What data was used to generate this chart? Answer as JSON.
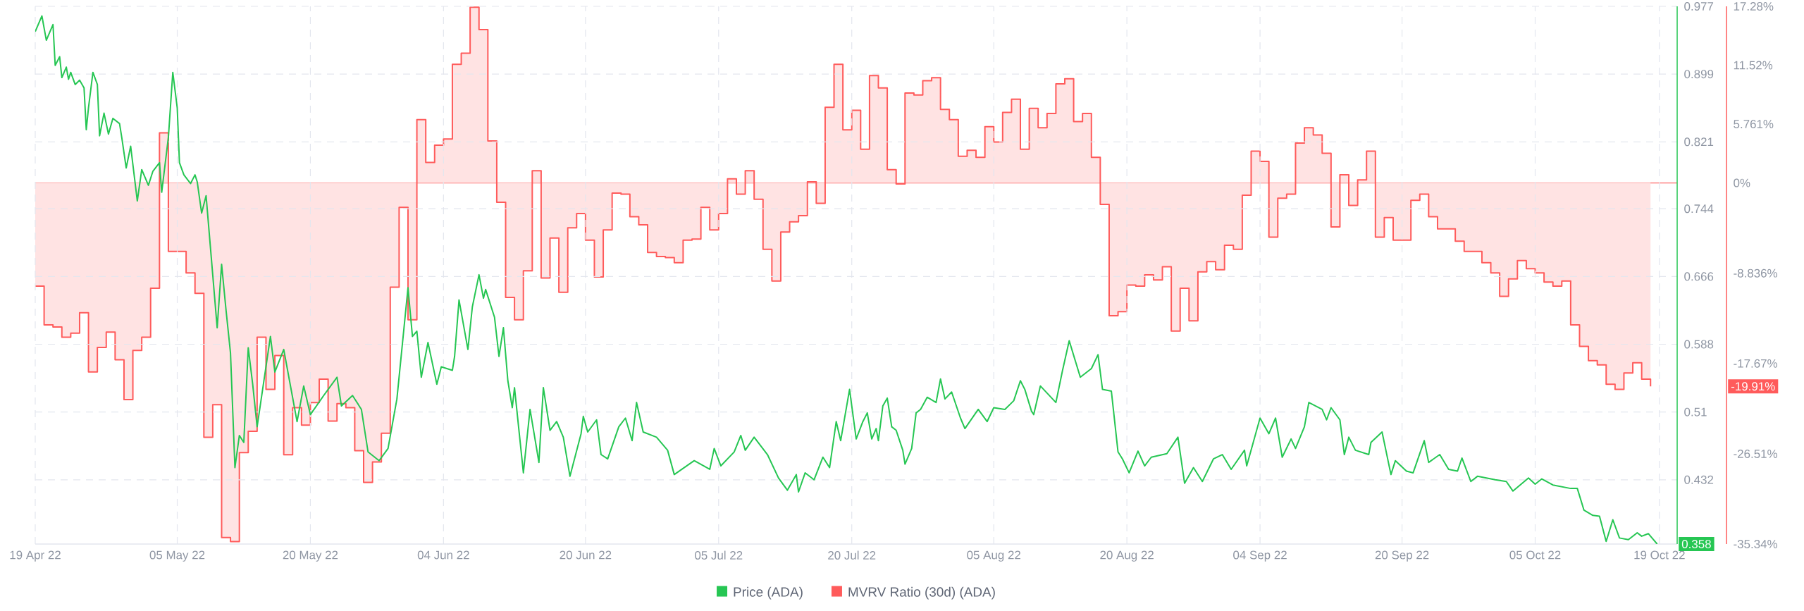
{
  "chart_data": {
    "type": "line",
    "xlim": [
      "2022-04-19",
      "2022-10-21"
    ],
    "xticks": [
      {
        "value": "2022-04-19",
        "label": "19 Apr 22"
      },
      {
        "value": "2022-05-05",
        "label": "05 May 22"
      },
      {
        "value": "2022-05-20",
        "label": "20 May 22"
      },
      {
        "value": "2022-06-04",
        "label": "04 Jun 22"
      },
      {
        "value": "2022-06-20",
        "label": "20 Jun 22"
      },
      {
        "value": "2022-07-05",
        "label": "05 Jul 22"
      },
      {
        "value": "2022-07-20",
        "label": "20 Jul 22"
      },
      {
        "value": "2022-08-05",
        "label": "05 Aug 22"
      },
      {
        "value": "2022-08-20",
        "label": "20 Aug 22"
      },
      {
        "value": "2022-09-04",
        "label": "04 Sep 22"
      },
      {
        "value": "2022-09-20",
        "label": "20 Sep 22"
      },
      {
        "value": "2022-10-05",
        "label": "05 Oct 22"
      },
      {
        "value": "2022-10-19",
        "label": "19 Oct 22"
      }
    ],
    "ylim": [
      0.358,
      0.977
    ],
    "yticks": [
      0.977,
      0.899,
      0.821,
      0.744,
      0.666,
      0.588,
      0.51,
      0.432
    ],
    "y2lim": [
      -35.34,
      17.28
    ],
    "y2ticks": [
      {
        "value": 17.28,
        "label": "17.28%"
      },
      {
        "value": 11.52,
        "label": "11.52%"
      },
      {
        "value": 5.761,
        "label": "5.761%"
      },
      {
        "value": 0,
        "label": "0%"
      },
      {
        "value": -8.836,
        "label": "-8.836%"
      },
      {
        "value": -17.67,
        "label": "-17.67%"
      },
      {
        "value": -26.51,
        "label": "-26.51%"
      },
      {
        "value": -35.34,
        "label": "-35.34%"
      }
    ],
    "grid": true,
    "legend": "bottom",
    "ref_lines": [
      {
        "axis": "y2",
        "value": 0,
        "color": "#ff6b6b"
      }
    ],
    "annotations": [
      "0.358",
      "-19.91%"
    ],
    "series": [
      {
        "name": "Price (ADA)",
        "color": "#26c653",
        "axis": "y",
        "x": [
          "2022-04-19T00:00",
          "2022-04-19T18:00",
          "2022-04-20T06:00",
          "2022-04-21T00:00",
          "2022-04-21T06:00",
          "2022-04-21T18:00",
          "2022-04-22T00:00",
          "2022-04-22T12:00",
          "2022-04-22T18:00",
          "2022-04-23T00:00",
          "2022-04-23T12:00",
          "2022-04-24T00:00",
          "2022-04-24T12:00",
          "2022-04-24T18:00",
          "2022-04-25T00:00",
          "2022-04-25T12:00",
          "2022-04-26T00:00",
          "2022-04-26T06:00",
          "2022-04-26T18:00",
          "2022-04-27T06:00",
          "2022-04-27T18:00",
          "2022-04-28T12:00",
          "2022-04-28T18:00",
          "2022-04-29T06:00",
          "2022-04-29T18:00",
          "2022-04-30T12:00",
          "2022-05-01T00:00",
          "2022-05-01T18:00",
          "2022-05-02T06:00",
          "2022-05-03T00:00",
          "2022-05-03T06:00",
          "2022-05-04T00:00",
          "2022-05-04T12:00",
          "2022-05-05T00:00",
          "2022-05-05T06:00",
          "2022-05-05T18:00",
          "2022-05-06T12:00",
          "2022-05-07T00:00",
          "2022-05-07T06:00",
          "2022-05-07T18:00",
          "2022-05-08T06:00",
          "2022-05-09T12:00",
          "2022-05-10T00:00",
          "2022-05-10T12:00",
          "2022-05-11T00:00",
          "2022-05-11T12:00",
          "2022-05-12T00:00",
          "2022-05-12T12:00",
          "2022-05-13T00:00",
          "2022-05-13T12:00",
          "2022-05-14T00:00",
          "2022-05-15T12:00",
          "2022-05-16T00:00",
          "2022-05-17T00:00",
          "2022-05-18T12:00",
          "2022-05-19T06:00",
          "2022-05-20T00:00",
          "2022-05-21T12:00",
          "2022-05-23T00:00",
          "2022-05-23T12:00",
          "2022-05-24T18:00",
          "2022-05-25T18:00",
          "2022-05-26T12:00",
          "2022-05-27T18:00",
          "2022-05-28T18:00",
          "2022-05-29T18:00",
          "2022-05-31T00:00",
          "2022-05-31T12:00",
          "2022-06-01T00:00",
          "2022-06-01T12:00",
          "2022-06-02T06:00",
          "2022-06-03T06:00",
          "2022-06-03T18:00",
          "2022-06-05T00:00",
          "2022-06-05T06:00",
          "2022-06-05T18:00",
          "2022-06-06T18:00",
          "2022-06-07T06:00",
          "2022-06-08T00:00",
          "2022-06-08T12:00",
          "2022-06-08T18:00",
          "2022-06-09T18:00",
          "2022-06-10T06:00",
          "2022-06-10T18:00",
          "2022-06-11T06:00",
          "2022-06-11T18:00",
          "2022-06-12T00:00",
          "2022-06-13T00:00",
          "2022-06-13T18:00",
          "2022-06-14T18:00",
          "2022-06-15T06:00",
          "2022-06-16T00:00",
          "2022-06-16T18:00",
          "2022-06-17T12:00",
          "2022-06-18T06:00",
          "2022-06-19T12:00",
          "2022-06-19T18:00",
          "2022-06-20T06:00",
          "2022-06-21T06:00",
          "2022-06-21T18:00",
          "2022-06-22T12:00",
          "2022-06-23T18:00",
          "2022-06-24T12:00",
          "2022-06-25T06:00",
          "2022-06-25T18:00",
          "2022-06-26T12:00",
          "2022-06-28T00:00",
          "2022-06-29T06:00",
          "2022-06-30T00:00",
          "2022-07-02T06:00",
          "2022-07-04T00:00",
          "2022-07-04T12:00",
          "2022-07-05T06:00",
          "2022-07-06T18:00",
          "2022-07-07T12:00",
          "2022-07-08T00:00",
          "2022-07-09T00:00",
          "2022-07-10T12:00",
          "2022-07-11T18:00",
          "2022-07-12T18:00",
          "2022-07-13T18:00",
          "2022-07-14T00:00",
          "2022-07-14T18:00",
          "2022-07-15T18:00",
          "2022-07-16T18:00",
          "2022-07-17T12:00",
          "2022-07-18T06:00",
          "2022-07-18T18:00",
          "2022-07-19T18:00",
          "2022-07-20T12:00",
          "2022-07-21T06:00",
          "2022-07-21T18:00",
          "2022-07-22T06:00",
          "2022-07-22T18:00",
          "2022-07-23T00:00",
          "2022-07-23T12:00",
          "2022-07-24T00:00",
          "2022-07-24T12:00",
          "2022-07-25T00:00",
          "2022-07-25T18:00",
          "2022-07-26T00:00",
          "2022-07-26T18:00",
          "2022-07-27T06:00",
          "2022-07-27T18:00",
          "2022-07-28T12:00",
          "2022-07-29T12:00",
          "2022-07-30T00:00",
          "2022-07-30T12:00",
          "2022-07-31T06:00",
          "2022-08-01T06:00",
          "2022-08-01T18:00",
          "2022-08-03T06:00",
          "2022-08-04T06:00",
          "2022-08-05T00:00",
          "2022-08-06T06:00",
          "2022-08-07T06:00",
          "2022-08-08T00:00",
          "2022-08-08T12:00",
          "2022-08-09T06:00",
          "2022-08-09T12:00",
          "2022-08-10T06:00",
          "2022-08-12T00:00",
          "2022-08-12T18:00",
          "2022-08-13T12:00",
          "2022-08-14T18:00",
          "2022-08-16T00:00",
          "2022-08-16T18:00",
          "2022-08-17T06:00",
          "2022-08-18T06:00",
          "2022-08-19T00:00",
          "2022-08-19T12:00",
          "2022-08-20T06:00",
          "2022-08-21T06:00",
          "2022-08-22T00:00",
          "2022-08-22T18:00",
          "2022-08-24T12:00",
          "2022-08-25T18:00",
          "2022-08-26T12:00",
          "2022-08-27T12:00",
          "2022-08-28T12:00",
          "2022-08-29T18:00",
          "2022-08-30T18:00",
          "2022-08-31T18:00",
          "2022-09-02T06:00",
          "2022-09-02T12:00",
          "2022-09-04T00:00",
          "2022-09-05T00:00",
          "2022-09-05T18:00",
          "2022-09-06T12:00",
          "2022-09-07T12:00",
          "2022-09-08T00:00",
          "2022-09-09T00:00",
          "2022-09-09T12:00",
          "2022-09-11T00:00",
          "2022-09-11T12:00",
          "2022-09-12T00:00",
          "2022-09-13T00:00",
          "2022-09-13T12:00",
          "2022-09-14T00:00",
          "2022-09-14T18:00",
          "2022-09-16T06:00",
          "2022-09-16T12:00",
          "2022-09-17T18:00",
          "2022-09-18T18:00",
          "2022-09-19T06:00",
          "2022-09-20T12:00",
          "2022-09-21T06:00",
          "2022-09-22T12:00",
          "2022-09-23T00:00",
          "2022-09-24T06:00",
          "2022-09-25T06:00",
          "2022-09-26T06:00",
          "2022-09-26T18:00",
          "2022-09-27T18:00",
          "2022-09-28T12:00",
          "2022-09-30T12:00",
          "2022-10-01T18:00",
          "2022-10-02T12:00",
          "2022-10-04T06:00",
          "2022-10-05T00:00",
          "2022-10-05T18:00",
          "2022-10-07T00:00",
          "2022-10-09T00:00",
          "2022-10-09T18:00",
          "2022-10-10T12:00",
          "2022-10-11T12:00",
          "2022-10-12T06:00",
          "2022-10-13T00:00",
          "2022-10-13T18:00",
          "2022-10-14T12:00",
          "2022-10-15T12:00",
          "2022-10-16T12:00",
          "2022-10-17T00:00",
          "2022-10-17T18:00",
          "2022-10-18T18:00"
        ],
        "values": [
          0.948,
          0.966,
          0.938,
          0.956,
          0.909,
          0.919,
          0.895,
          0.907,
          0.893,
          0.901,
          0.887,
          0.892,
          0.883,
          0.835,
          0.86,
          0.901,
          0.887,
          0.828,
          0.854,
          0.83,
          0.848,
          0.842,
          0.826,
          0.791,
          0.816,
          0.753,
          0.789,
          0.771,
          0.787,
          0.797,
          0.763,
          0.826,
          0.901,
          0.86,
          0.797,
          0.783,
          0.773,
          0.783,
          0.775,
          0.739,
          0.759,
          0.607,
          0.68,
          0.627,
          0.578,
          0.446,
          0.483,
          0.475,
          0.584,
          0.542,
          0.493,
          0.597,
          0.556,
          0.582,
          0.499,
          0.54,
          0.507,
          0.529,
          0.55,
          0.517,
          0.529,
          0.513,
          0.464,
          0.454,
          0.468,
          0.525,
          0.653,
          0.597,
          0.603,
          0.55,
          0.59,
          0.542,
          0.562,
          0.558,
          0.574,
          0.639,
          0.582,
          0.631,
          0.668,
          0.641,
          0.651,
          0.619,
          0.574,
          0.607,
          0.546,
          0.515,
          0.538,
          0.44,
          0.513,
          0.452,
          0.538,
          0.489,
          0.499,
          0.481,
          0.436,
          0.485,
          0.505,
          0.487,
          0.501,
          0.461,
          0.456,
          0.493,
          0.503,
          0.477,
          0.521,
          0.487,
          0.481,
          0.466,
          0.438,
          0.454,
          0.444,
          0.468,
          0.448,
          0.464,
          0.483,
          0.466,
          0.481,
          0.461,
          0.434,
          0.42,
          0.438,
          0.418,
          0.44,
          0.432,
          0.458,
          0.446,
          0.499,
          0.477,
          0.536,
          0.479,
          0.499,
          0.509,
          0.479,
          0.491,
          0.477,
          0.517,
          0.526,
          0.493,
          0.489,
          0.466,
          0.45,
          0.468,
          0.509,
          0.513,
          0.527,
          0.521,
          0.548,
          0.525,
          0.533,
          0.503,
          0.491,
          0.513,
          0.499,
          0.515,
          0.513,
          0.523,
          0.546,
          0.536,
          0.511,
          0.507,
          0.54,
          0.521,
          0.558,
          0.592,
          0.55,
          0.56,
          0.576,
          0.536,
          0.534,
          0.464,
          0.456,
          0.44,
          0.465,
          0.448,
          0.458,
          0.462,
          0.481,
          0.428,
          0.446,
          0.43,
          0.456,
          0.461,
          0.444,
          0.466,
          0.448,
          0.503,
          0.485,
          0.503,
          0.458,
          0.479,
          0.468,
          0.493,
          0.521,
          0.513,
          0.501,
          0.515,
          0.501,
          0.461,
          0.481,
          0.466,
          0.461,
          0.475,
          0.487,
          0.438,
          0.454,
          0.442,
          0.44,
          0.477,
          0.452,
          0.461,
          0.444,
          0.442,
          0.457,
          0.43,
          0.436,
          0.432,
          0.43,
          0.419,
          0.434,
          0.427,
          0.433,
          0.426,
          0.422,
          0.422,
          0.397,
          0.391,
          0.39,
          0.361,
          0.386,
          0.365,
          0.363,
          0.371,
          0.367,
          0.37,
          0.358
        ]
      },
      {
        "name": "MVRV Ratio (30d) (ADA)",
        "color": "#ff5b5b",
        "type": "step",
        "axis": "y2",
        "x": [
          "2022-04-19",
          "2022-04-20",
          "2022-04-21",
          "2022-04-22",
          "2022-04-23",
          "2022-04-24",
          "2022-04-25",
          "2022-04-26",
          "2022-04-27",
          "2022-04-28",
          "2022-04-29",
          "2022-04-30",
          "2022-05-01",
          "2022-05-02",
          "2022-05-03",
          "2022-05-04",
          "2022-05-05",
          "2022-05-06",
          "2022-05-07",
          "2022-05-08",
          "2022-05-09",
          "2022-05-10",
          "2022-05-11",
          "2022-05-12",
          "2022-05-13",
          "2022-05-14",
          "2022-05-15",
          "2022-05-16",
          "2022-05-17",
          "2022-05-18",
          "2022-05-19",
          "2022-05-20",
          "2022-05-21",
          "2022-05-22",
          "2022-05-23",
          "2022-05-24",
          "2022-05-25",
          "2022-05-26",
          "2022-05-27",
          "2022-05-28",
          "2022-05-29",
          "2022-05-30",
          "2022-05-31",
          "2022-06-01",
          "2022-06-02",
          "2022-06-03",
          "2022-06-04",
          "2022-06-05",
          "2022-06-06",
          "2022-06-07",
          "2022-06-08",
          "2022-06-09",
          "2022-06-10",
          "2022-06-11",
          "2022-06-12",
          "2022-06-13",
          "2022-06-14",
          "2022-06-15",
          "2022-06-16",
          "2022-06-17",
          "2022-06-18",
          "2022-06-19",
          "2022-06-20",
          "2022-06-21",
          "2022-06-22",
          "2022-06-23",
          "2022-06-24",
          "2022-06-25",
          "2022-06-26",
          "2022-06-27",
          "2022-06-28",
          "2022-06-29",
          "2022-06-30",
          "2022-07-01",
          "2022-07-02",
          "2022-07-03",
          "2022-07-04",
          "2022-07-05",
          "2022-07-06",
          "2022-07-07",
          "2022-07-08",
          "2022-07-09",
          "2022-07-10",
          "2022-07-11",
          "2022-07-12",
          "2022-07-13",
          "2022-07-14",
          "2022-07-15",
          "2022-07-16",
          "2022-07-17",
          "2022-07-18",
          "2022-07-19",
          "2022-07-20",
          "2022-07-21",
          "2022-07-22",
          "2022-07-23",
          "2022-07-24",
          "2022-07-25",
          "2022-07-26",
          "2022-07-27",
          "2022-07-28",
          "2022-07-29",
          "2022-07-30",
          "2022-07-31",
          "2022-08-01",
          "2022-08-02",
          "2022-08-03",
          "2022-08-04",
          "2022-08-05",
          "2022-08-06",
          "2022-08-07",
          "2022-08-08",
          "2022-08-09",
          "2022-08-10",
          "2022-08-11",
          "2022-08-12",
          "2022-08-13",
          "2022-08-14",
          "2022-08-15",
          "2022-08-16",
          "2022-08-17",
          "2022-08-18",
          "2022-08-19",
          "2022-08-20",
          "2022-08-21",
          "2022-08-22",
          "2022-08-23",
          "2022-08-24",
          "2022-08-25",
          "2022-08-26",
          "2022-08-27",
          "2022-08-28",
          "2022-08-29",
          "2022-08-30",
          "2022-08-31",
          "2022-09-01",
          "2022-09-02",
          "2022-09-03",
          "2022-09-04",
          "2022-09-05",
          "2022-09-06",
          "2022-09-07",
          "2022-09-08",
          "2022-09-09",
          "2022-09-10",
          "2022-09-11",
          "2022-09-12",
          "2022-09-13",
          "2022-09-14",
          "2022-09-15",
          "2022-09-16",
          "2022-09-17",
          "2022-09-18",
          "2022-09-19",
          "2022-09-20",
          "2022-09-21",
          "2022-09-22",
          "2022-09-23",
          "2022-09-24",
          "2022-09-25",
          "2022-09-26",
          "2022-09-27",
          "2022-09-28",
          "2022-09-29",
          "2022-09-30",
          "2022-10-01",
          "2022-10-02",
          "2022-10-03",
          "2022-10-04",
          "2022-10-05",
          "2022-10-06",
          "2022-10-07",
          "2022-10-08",
          "2022-10-09",
          "2022-10-10",
          "2022-10-11",
          "2022-10-12",
          "2022-10-13",
          "2022-10-14",
          "2022-10-15",
          "2022-10-16",
          "2022-10-17",
          "2022-10-18"
        ],
        "values": [
          -10.1,
          -13.9,
          -14.1,
          -15.1,
          -14.7,
          -12.7,
          -18.5,
          -16.1,
          -14.6,
          -17.3,
          -21.2,
          -16.4,
          -15.1,
          -10.3,
          4.9,
          -6.7,
          -6.7,
          -8.8,
          -10.8,
          -24.9,
          -21.7,
          -34.7,
          -35.1,
          -26.4,
          -24.3,
          -15.1,
          -20.2,
          -16.9,
          -26.6,
          -22.0,
          -23.7,
          -21.5,
          -19.2,
          -23.3,
          -21.6,
          -22.0,
          -26.2,
          -29.3,
          -27.3,
          -24.5,
          -10.2,
          -2.4,
          -13.4,
          6.2,
          2.0,
          3.7,
          4.3,
          11.6,
          12.7,
          17.2,
          15.0,
          4.1,
          -1.9,
          -11.2,
          -13.4,
          -8.6,
          1.2,
          -9.3,
          -5.4,
          -10.7,
          -4.4,
          -3.0,
          -5.6,
          -9.2,
          -4.6,
          -1.0,
          -1.1,
          -3.3,
          -4.1,
          -6.8,
          -7.2,
          -7.3,
          -7.8,
          -5.6,
          -5.5,
          -2.4,
          -4.6,
          -3.0,
          0.4,
          -1.1,
          1.2,
          -1.6,
          -6.5,
          -9.6,
          -4.8,
          -3.8,
          -3.2,
          0.1,
          -2.0,
          7.4,
          11.6,
          5.2,
          7.1,
          3.3,
          10.5,
          9.3,
          1.3,
          -0.1,
          8.8,
          8.6,
          10.0,
          10.3,
          7.2,
          6.2,
          2.6,
          3.2,
          2.5,
          5.5,
          4.0,
          6.9,
          8.2,
          3.3,
          7.3,
          5.4,
          6.8,
          9.7,
          10.2,
          6.0,
          6.8,
          2.5,
          -2.1,
          -13.0,
          -12.6,
          -10.0,
          -10.1,
          -9.0,
          -9.5,
          -8.2,
          -14.5,
          -10.3,
          -13.5,
          -8.7,
          -7.7,
          -8.5,
          -6.1,
          -6.5,
          -1.2,
          3.1,
          2.1,
          -5.3,
          -1.5,
          -1.1,
          3.9,
          5.4,
          4.7,
          2.9,
          -4.3,
          0.8,
          -2.2,
          0.3,
          3.1,
          -5.3,
          -3.4,
          -5.6,
          -5.6,
          -1.7,
          -1.1,
          -3.3,
          -4.5,
          -4.5,
          -5.7,
          -6.7,
          -6.7,
          -7.8,
          -8.8,
          -11.1,
          -9.4,
          -7.6,
          -8.4,
          -8.8,
          -9.7,
          -10.1,
          -9.6,
          -13.9,
          -16.0,
          -17.4,
          -17.8,
          -19.7,
          -20.2,
          -18.6,
          -17.6,
          -19.2,
          -19.91
        ]
      }
    ]
  }
}
